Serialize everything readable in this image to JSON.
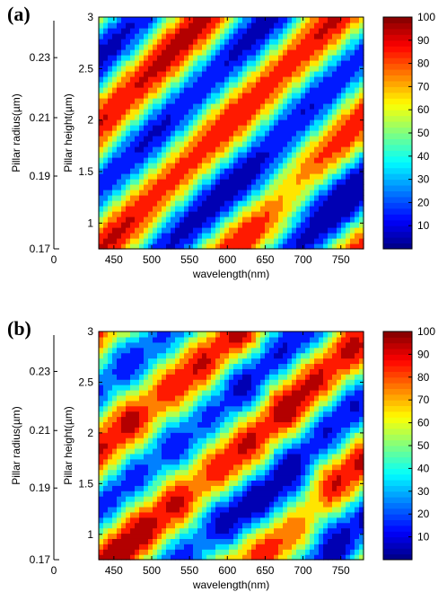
{
  "chart_data": [
    {
      "type": "heatmap",
      "panel_label": "(a)",
      "title": "",
      "xlabel": "wavelength(nm)",
      "ylabel": "Pillar height(µm)",
      "ylabel_outer": "Pillar radius(µm)",
      "xlim": [
        430,
        780
      ],
      "ylim": [
        0.75,
        3.0
      ],
      "x_ticks": [
        450,
        500,
        550,
        600,
        650,
        700,
        750
      ],
      "y_ticks": [
        1,
        1.5,
        2,
        2.5,
        3
      ],
      "y_ticks_outer": [
        "0.17",
        "0.19",
        "0.21",
        "0.23"
      ],
      "outer_origin_label": "0",
      "colorbar": {
        "min": 0,
        "max": 100,
        "ticks": [
          10,
          20,
          30,
          40,
          50,
          60,
          70,
          80,
          90,
          100
        ]
      },
      "colormap": "jet",
      "contour_levels": [
        10,
        20,
        30,
        40,
        50,
        60,
        70,
        80,
        90
      ],
      "grid": false
    },
    {
      "type": "heatmap",
      "panel_label": "(b)",
      "title": "",
      "xlabel": "wavelength(nm)",
      "ylabel": "Pillar height(µm)",
      "ylabel_outer": "Pillar radius(µm)",
      "xlim": [
        430,
        780
      ],
      "ylim": [
        0.75,
        3.0
      ],
      "x_ticks": [
        450,
        500,
        550,
        600,
        650,
        700,
        750
      ],
      "y_ticks": [
        1,
        1.5,
        2,
        2.5,
        3
      ],
      "y_ticks_outer": [
        "0.17",
        "0.19",
        "0.21",
        "0.23"
      ],
      "outer_origin_label": "0",
      "colorbar": {
        "min": 0,
        "max": 100,
        "ticks": [
          10,
          20,
          30,
          40,
          50,
          60,
          70,
          80,
          90,
          100
        ]
      },
      "colormap": "jet",
      "contour_levels": [
        10,
        20,
        30,
        40,
        50,
        60,
        70,
        80,
        90
      ],
      "grid": false
    }
  ]
}
